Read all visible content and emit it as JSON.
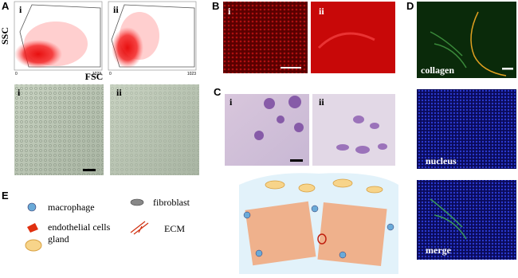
{
  "panel_a": {
    "label": "A",
    "flow_plots": [
      {
        "label": "i",
        "x_min": 0,
        "x_max": 1023
      },
      {
        "label": "ii",
        "x_min": 0,
        "x_max": 1023
      }
    ],
    "y_axis": "SSC",
    "x_axis": "FSC",
    "images": [
      {
        "label": "i"
      },
      {
        "label": "ii"
      }
    ]
  },
  "panel_b": {
    "label": "B",
    "images": [
      {
        "label": "i"
      },
      {
        "label": "ii"
      }
    ]
  },
  "panel_c": {
    "label": "C",
    "images": [
      {
        "label": "i"
      },
      {
        "label": "ii"
      }
    ]
  },
  "panel_d": {
    "label": "D",
    "images": [
      {
        "label": "collagen"
      },
      {
        "label": "nucleus"
      },
      {
        "label": "merge"
      }
    ]
  },
  "panel_e": {
    "label": "E",
    "legend": [
      "macrophage",
      "fibroblast",
      "endothelial cells",
      "ECM",
      "gland"
    ]
  }
}
